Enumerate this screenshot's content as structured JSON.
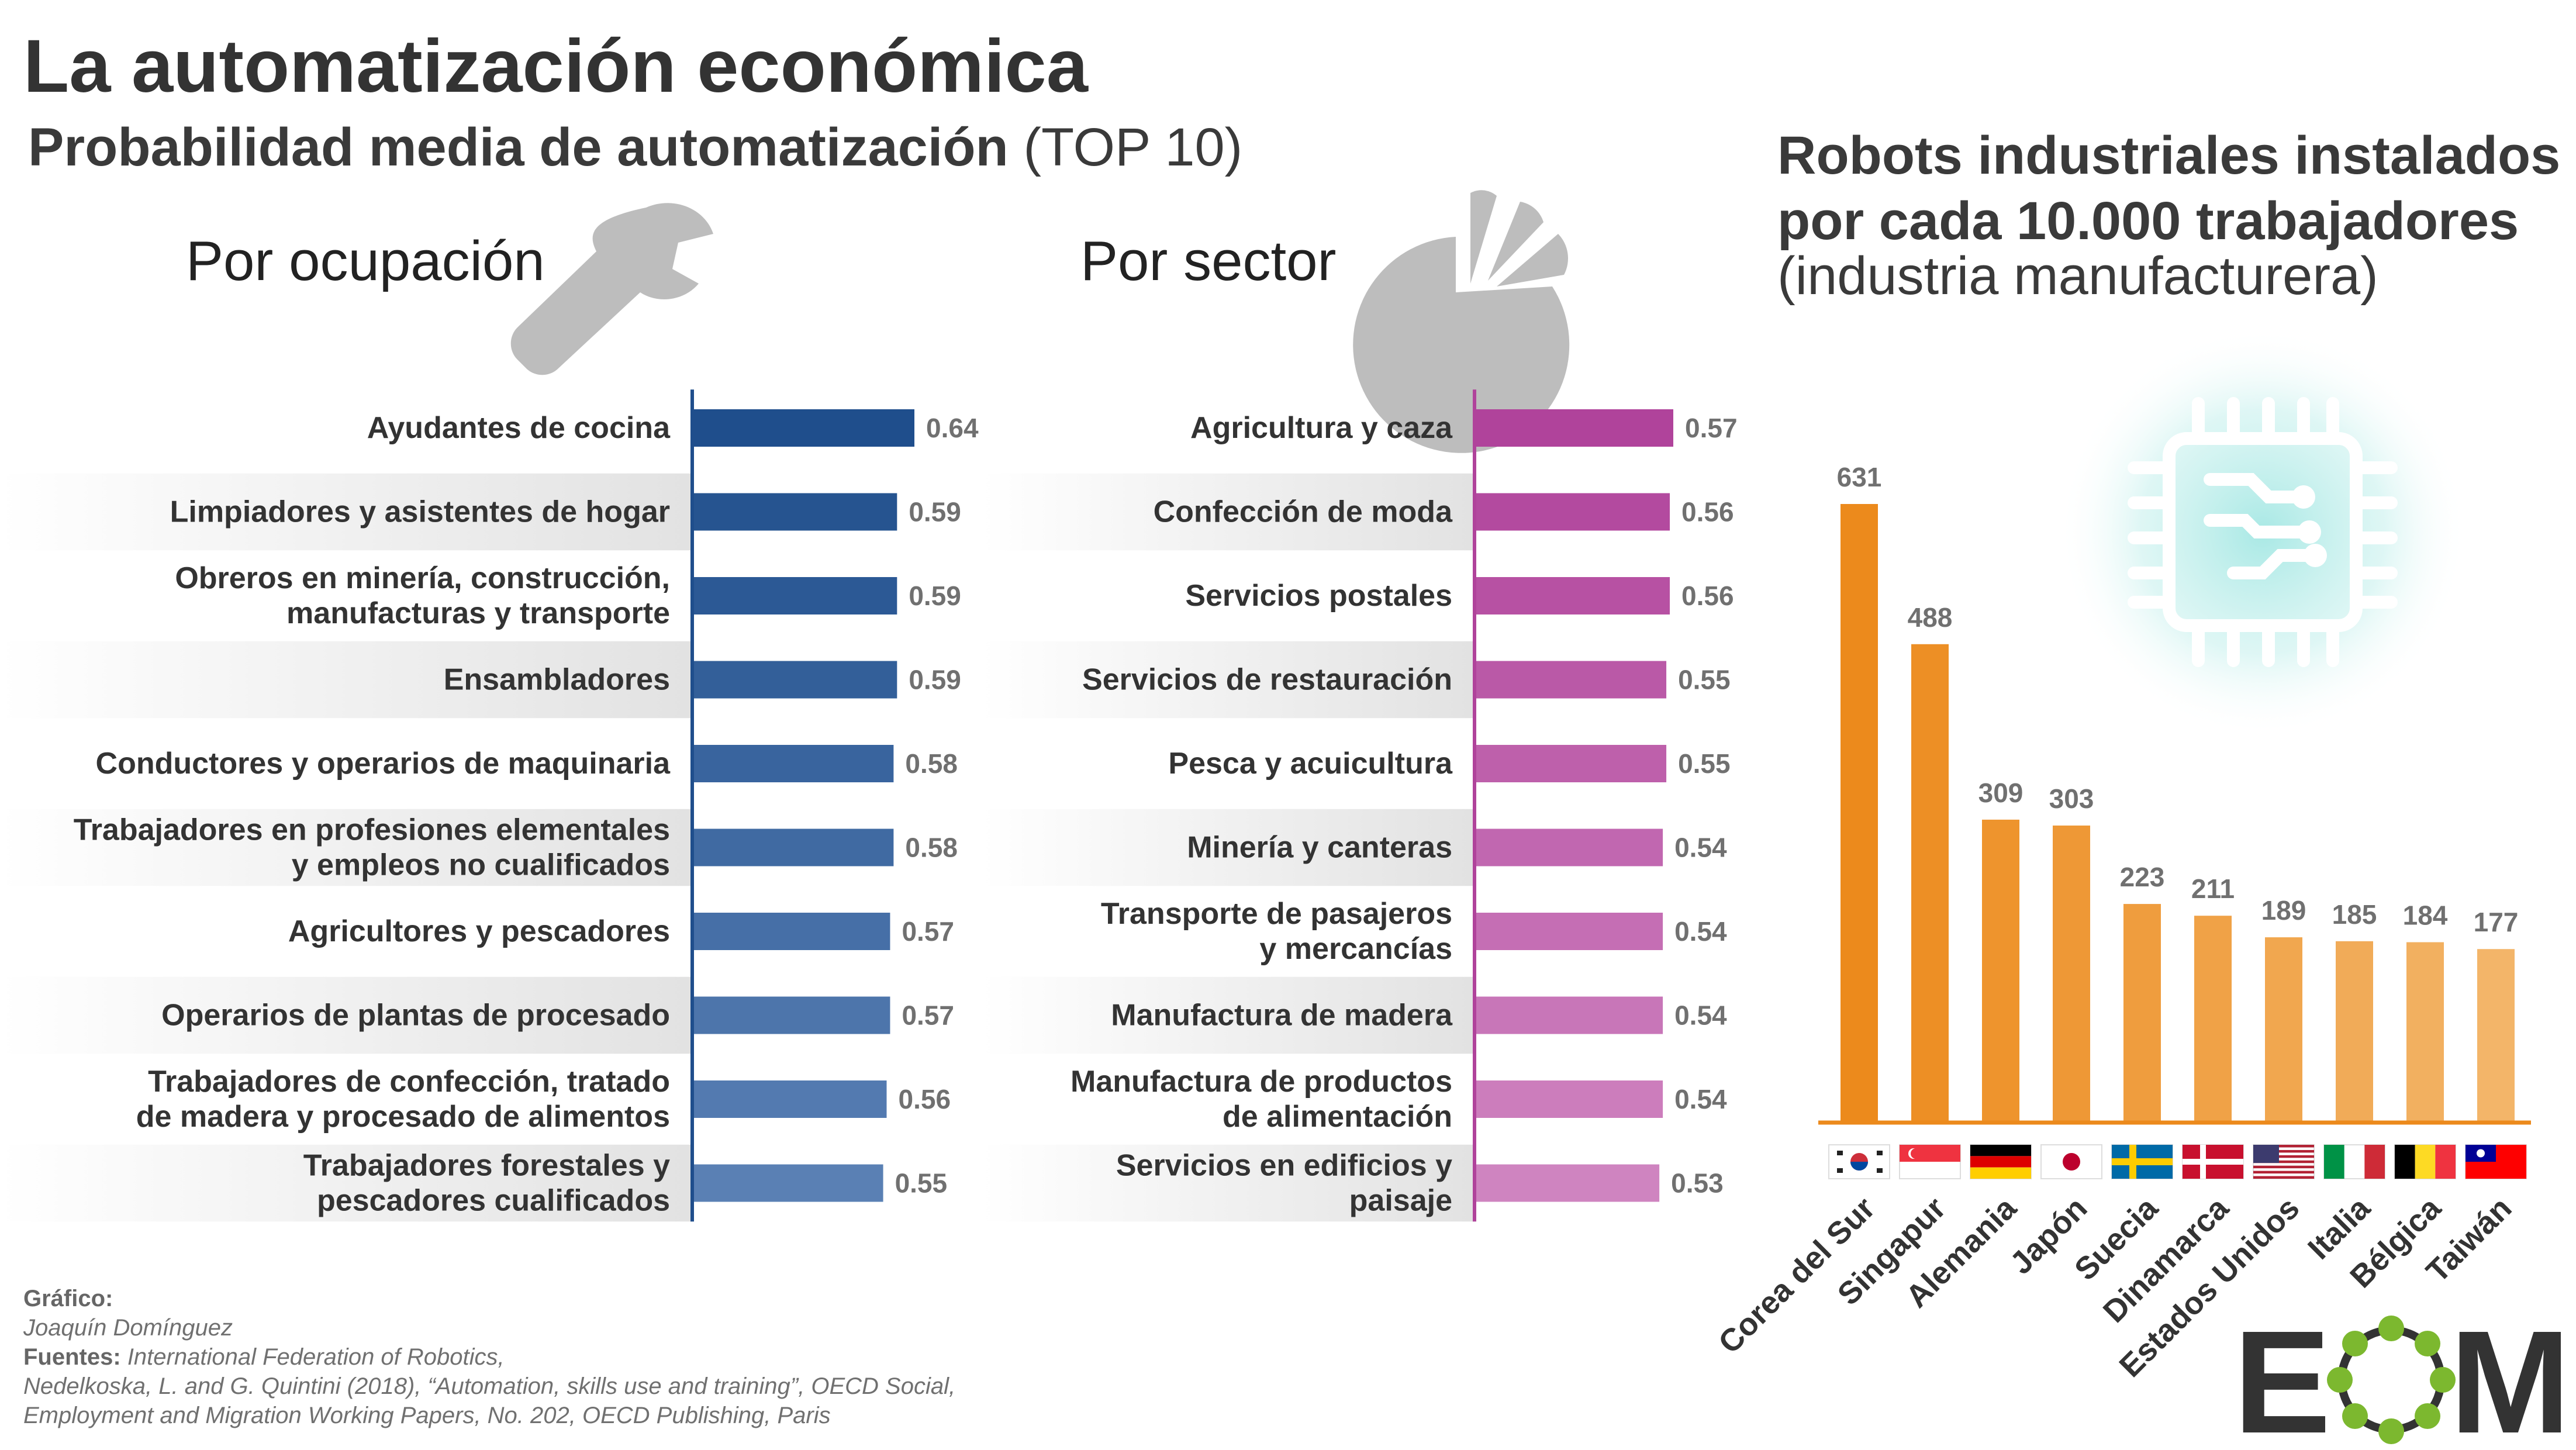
{
  "header": {
    "title": "La automatización económica",
    "subtitle_bold": "Probabilidad media de automatización",
    "subtitle_light": "(TOP 10)",
    "occupation_label": "Por ocupación",
    "sector_label": "Por sector",
    "robots_title_line1": "Robots industriales instalados",
    "robots_title_line2": "por cada 10.000 trabajadores",
    "robots_subtitle": "(industria manufacturera)"
  },
  "colors": {
    "occupation_dark": "#1f4e8c",
    "occupation_light": "#5a80b4",
    "sector_dark": "#b0439b",
    "sector_light": "#cf84c0",
    "robots_dark": "#ec8a1c",
    "robots_light": "#f3b569",
    "icon_gray": "#bdbdbd"
  },
  "icons": [
    "wrench-icon",
    "pie-icon",
    "chip-icon"
  ],
  "chart_data": [
    {
      "type": "bar",
      "orientation": "horizontal",
      "title": "Por ocupación",
      "categories": [
        [
          "Ayudantes de cocina"
        ],
        [
          "Limpiadores y asistentes de hogar"
        ],
        [
          "Obreros en minería, construcción,",
          "manufacturas y transporte"
        ],
        [
          "Ensambladores"
        ],
        [
          "Conductores y operarios de maquinaria"
        ],
        [
          "Trabajadores en profesiones elementales",
          "y empleos no cualificados"
        ],
        [
          "Agricultores y pescadores"
        ],
        [
          "Operarios de plantas de procesado"
        ],
        [
          "Trabajadores de confección, tratado",
          "de madera y procesado de alimentos"
        ],
        [
          "Trabajadores forestales y",
          "pescadores cualificados"
        ]
      ],
      "values": [
        0.64,
        0.59,
        0.59,
        0.59,
        0.58,
        0.58,
        0.57,
        0.57,
        0.56,
        0.55
      ],
      "value_labels": [
        "0.64",
        "0.59",
        "0.59",
        "0.59",
        "0.58",
        "0.58",
        "0.57",
        "0.57",
        "0.56",
        "0.55"
      ]
    },
    {
      "type": "bar",
      "orientation": "horizontal",
      "title": "Por sector",
      "categories": [
        [
          "Agricultura y caza"
        ],
        [
          "Confección de moda"
        ],
        [
          "Servicios postales"
        ],
        [
          "Servicios de restauración"
        ],
        [
          "Pesca y acuicultura"
        ],
        [
          "Minería y canteras"
        ],
        [
          "Transporte de pasajeros",
          "y mercancías"
        ],
        [
          "Manufactura de madera"
        ],
        [
          "Manufactura de productos",
          "de alimentación"
        ],
        [
          "Servicios en edificios y",
          "paisaje"
        ]
      ],
      "values": [
        0.57,
        0.56,
        0.56,
        0.55,
        0.55,
        0.54,
        0.54,
        0.54,
        0.54,
        0.53
      ],
      "value_labels": [
        "0.57",
        "0.56",
        "0.56",
        "0.55",
        "0.55",
        "0.54",
        "0.54",
        "0.54",
        "0.54",
        "0.53"
      ]
    },
    {
      "type": "bar",
      "orientation": "vertical",
      "title": "Robots industriales instalados por cada 10.000 trabajadores (industria manufacturera)",
      "categories": [
        "Corea del Sur",
        "Singapur",
        "Alemania",
        "Japón",
        "Suecia",
        "Dinamarca",
        "Estados Unidos",
        "Italia",
        "Bélgica",
        "Taiwán"
      ],
      "values": [
        631,
        488,
        309,
        303,
        223,
        211,
        189,
        185,
        184,
        177
      ],
      "value_labels": [
        "631",
        "488",
        "309",
        "303",
        "223",
        "211",
        "189",
        "185",
        "184",
        "177"
      ],
      "flags": [
        "kr-flag-icon",
        "sg-flag-icon",
        "de-flag-icon",
        "jp-flag-icon",
        "se-flag-icon",
        "dk-flag-icon",
        "us-flag-icon",
        "it-flag-icon",
        "be-flag-icon",
        "tw-flag-icon"
      ]
    }
  ],
  "credits": {
    "graphic_label": "Gráfico:",
    "graphic_author": "Joaquín Domínguez",
    "sources_label": "Fuentes:",
    "sources_line1": "International Federation of Robotics,",
    "sources_line2": "Nedelkoska, L. and G. Quintini (2018), “Automation, skills use and training”, OECD Social,",
    "sources_line3": "Employment and Migration Working Papers, No. 202, OECD Publishing, Paris"
  },
  "logo": {
    "left": "E",
    "right": "M"
  }
}
